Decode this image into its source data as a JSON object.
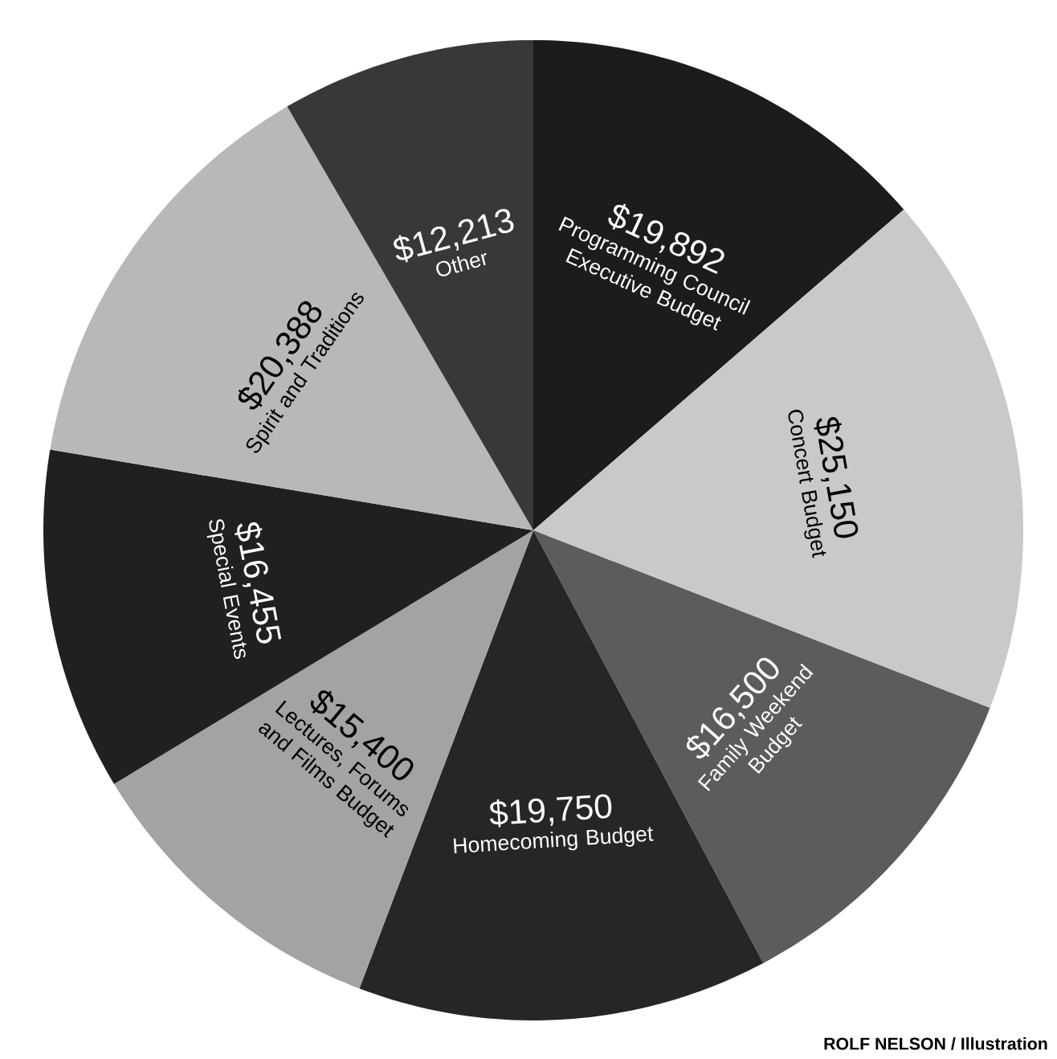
{
  "chart_data": {
    "type": "pie",
    "categories": [
      "Programming Council Executive Budget",
      "Concert Budget",
      "Family Weekend Budget",
      "Homecoming Budget",
      "Lectures, Forums and Films Budget",
      "Special Events",
      "Spirit and Traditions",
      "Other"
    ],
    "values": [
      19892,
      25150,
      16500,
      19750,
      15400,
      16455,
      20388,
      12213
    ],
    "value_labels": [
      "$19,892",
      "$25,150",
      "$16,500",
      "$19,750",
      "$15,400",
      "$16,455",
      "$20,388",
      "$12,213"
    ],
    "colors": [
      "#1c1c1c",
      "#c9c9c9",
      "#5c5c5c",
      "#262626",
      "#a3a3a3",
      "#202020",
      "#b8b8b8",
      "#383838"
    ],
    "annotations": [
      "ROLF NELSON / Illustration"
    ]
  }
}
